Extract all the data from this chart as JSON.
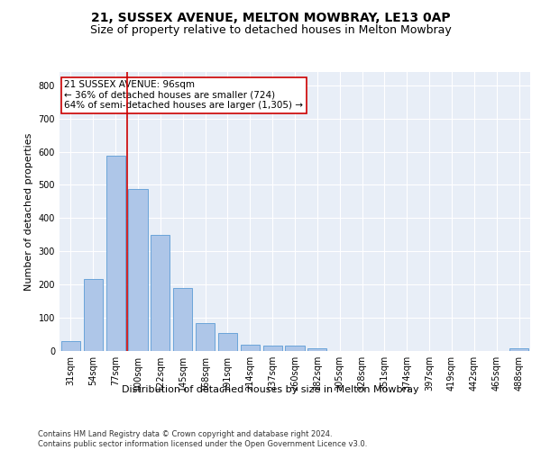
{
  "title": "21, SUSSEX AVENUE, MELTON MOWBRAY, LE13 0AP",
  "subtitle": "Size of property relative to detached houses in Melton Mowbray",
  "xlabel": "Distribution of detached houses by size in Melton Mowbray",
  "ylabel": "Number of detached properties",
  "bar_labels": [
    "31sqm",
    "54sqm",
    "77sqm",
    "100sqm",
    "122sqm",
    "145sqm",
    "168sqm",
    "191sqm",
    "214sqm",
    "237sqm",
    "260sqm",
    "282sqm",
    "305sqm",
    "328sqm",
    "351sqm",
    "374sqm",
    "397sqm",
    "419sqm",
    "442sqm",
    "465sqm",
    "488sqm"
  ],
  "bar_values": [
    30,
    218,
    588,
    488,
    350,
    190,
    85,
    53,
    20,
    15,
    15,
    8,
    0,
    0,
    0,
    0,
    0,
    0,
    0,
    0,
    8
  ],
  "bar_color": "#aec6e8",
  "bar_edge_color": "#5b9bd5",
  "red_line_x": 2.5,
  "annotation_box_text": "21 SUSSEX AVENUE: 96sqm\n← 36% of detached houses are smaller (724)\n64% of semi-detached houses are larger (1,305) →",
  "annotation_box_color": "#ffffff",
  "annotation_box_edge_color": "#cc0000",
  "ylim": [
    0,
    840
  ],
  "yticks": [
    0,
    100,
    200,
    300,
    400,
    500,
    600,
    700,
    800
  ],
  "bg_color": "#e8eef7",
  "footer_text": "Contains HM Land Registry data © Crown copyright and database right 2024.\nContains public sector information licensed under the Open Government Licence v3.0.",
  "title_fontsize": 10,
  "subtitle_fontsize": 9,
  "axis_label_fontsize": 8,
  "tick_fontsize": 7,
  "annotation_fontsize": 7.5,
  "footer_fontsize": 6,
  "ylabel_fontsize": 8
}
